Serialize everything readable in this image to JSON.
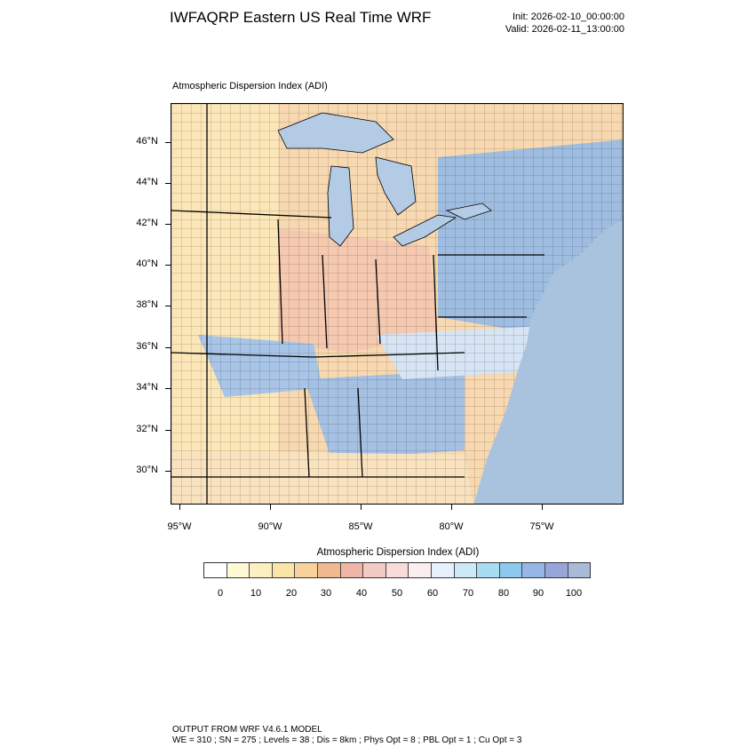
{
  "header": {
    "title": "IWFAQRP Eastern US Real Time WRF",
    "init": "Init: 2026-02-10_00:00:00",
    "valid": "Valid: 2026-02-11_13:00:00"
  },
  "map": {
    "subtitle": "Atmospheric Dispersion Index   (ADI)",
    "lat_labels": [
      "46°N",
      "44°N",
      "42°N",
      "40°N",
      "38°N",
      "36°N",
      "34°N",
      "32°N",
      "30°N"
    ],
    "lon_labels": [
      "95°W",
      "90°W",
      "85°W",
      "80°W",
      "75°W"
    ],
    "colors": {
      "ocean": "#a9c3df",
      "lake": "#b3cbe4",
      "border": "#000000"
    }
  },
  "colorbar": {
    "title": "Atmospheric Dispersion Index  (ADI)",
    "labels": [
      "0",
      "10",
      "20",
      "30",
      "40",
      "50",
      "60",
      "70",
      "80",
      "90",
      "100"
    ],
    "colors": [
      "#ffffff",
      "#fff9d6",
      "#fdf0c0",
      "#fbe4a8",
      "#f7d29a",
      "#f3b98e",
      "#f1b5a8",
      "#f4cac4",
      "#f8dcdc",
      "#fbeef0",
      "#e8f0fb",
      "#cde8f7",
      "#a8dcf2",
      "#8cc8ef",
      "#94b7e8",
      "#97a6da",
      "#a9b9d8"
    ]
  },
  "footer": {
    "line1": "OUTPUT FROM WRF V4.6.1 MODEL",
    "line2": "WE = 310 ; SN = 275 ; Levels = 38 ; Dis = 8km ; Phys Opt = 8 ; PBL Opt = 1 ; Cu Opt = 3"
  }
}
